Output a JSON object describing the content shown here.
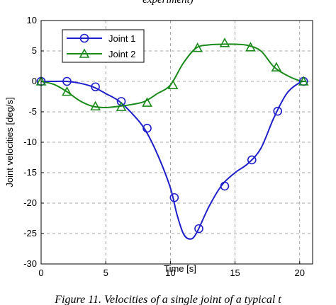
{
  "caption_top": "experiment)",
  "caption_bottom": "Figure 11. Velocities of a single joint of a typical t",
  "chart_data": {
    "type": "line",
    "xlabel": "Time [s]",
    "ylabel": "Joint velocities [deg/s]",
    "xlim": [
      0,
      21
    ],
    "ylim": [
      -30,
      10
    ],
    "xticks": [
      0,
      5,
      10,
      15,
      20
    ],
    "yticks": [
      10,
      5,
      0,
      -5,
      -10,
      -15,
      -20,
      -25,
      -30
    ],
    "grid": true,
    "legend_position": "top-left",
    "series": [
      {
        "name": "Joint 1",
        "color": "#1f1fcc",
        "marker": "circle",
        "x": [
          0,
          1,
          2,
          3,
          4,
          5,
          6,
          7,
          8,
          9,
          10,
          10.5,
          11,
          11.5,
          12,
          13,
          14,
          15,
          16,
          17,
          18,
          19,
          20,
          20.5
        ],
        "y": [
          0,
          0,
          0,
          -0.3,
          -0.9,
          -2.0,
          -3.2,
          -5.2,
          -7.8,
          -12.0,
          -17.5,
          -21.8,
          -25.0,
          -25.9,
          -25.0,
          -20.5,
          -17.0,
          -15.0,
          -13.5,
          -11.0,
          -6.0,
          -2.0,
          -0.2,
          0
        ]
      },
      {
        "name": "Joint 2",
        "color": "#1a8a1a",
        "marker": "triangle",
        "x": [
          0,
          1,
          2,
          3,
          4,
          5,
          6,
          7,
          8,
          9,
          10,
          11,
          12,
          13,
          14,
          15,
          16,
          17,
          18,
          19,
          20,
          20.5
        ],
        "y": [
          0,
          -0.5,
          -1.7,
          -3.2,
          -4.1,
          -4.3,
          -4.1,
          -3.8,
          -3.3,
          -2.0,
          -0.6,
          3.0,
          5.5,
          6.0,
          6.1,
          6.1,
          5.9,
          5.0,
          2.4,
          1.0,
          0.1,
          0
        ]
      }
    ],
    "markers": [
      {
        "series": 0,
        "x": [
          0,
          2,
          4.2,
          6.2,
          8.2,
          10.3,
          12.2,
          14.2,
          16.3,
          18.3,
          20.3
        ],
        "y": [
          0,
          0,
          -0.9,
          -3.3,
          -7.7,
          -19.1,
          -24.2,
          -17.2,
          -12.9,
          -4.9,
          0
        ]
      },
      {
        "series": 1,
        "x": [
          0,
          2,
          4.2,
          6.2,
          8.2,
          10.2,
          12.1,
          14.2,
          16.2,
          18.2,
          20.3
        ],
        "y": [
          0,
          -1.7,
          -4.1,
          -4.2,
          -3.5,
          -0.6,
          5.5,
          6.3,
          5.6,
          2.3,
          0
        ]
      }
    ]
  }
}
